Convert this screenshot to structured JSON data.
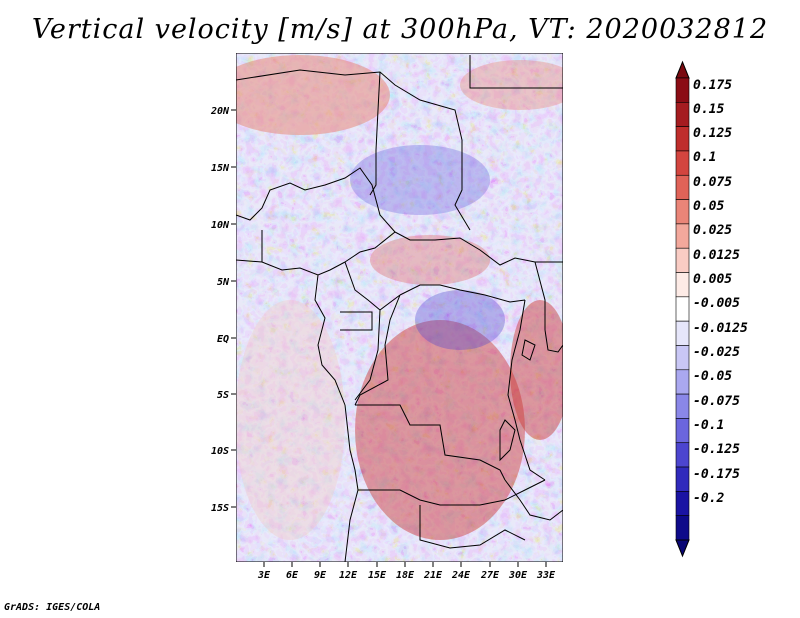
{
  "title": "Vertical velocity [m/s] at 300hPa, VT: 2020032812",
  "credit": "GrADS: IGES/COLA",
  "map": {
    "lat_labels": [
      "20N",
      "15N",
      "10N",
      "5N",
      "EQ",
      "5S",
      "10S",
      "15S"
    ],
    "lon_labels": [
      "3E",
      "6E",
      "9E",
      "12E",
      "15E",
      "18E",
      "21E",
      "24E",
      "27E",
      "30E",
      "33E"
    ]
  },
  "colorbar": {
    "levels": [
      "0.175",
      "0.15",
      "0.125",
      "0.1",
      "0.075",
      "0.05",
      "0.025",
      "0.0125",
      "0.005",
      "-0.005",
      "-0.0125",
      "-0.025",
      "-0.05",
      "-0.075",
      "-0.1",
      "-0.125",
      "-0.175",
      "-0.2"
    ],
    "colors": [
      "#8b0d15",
      "#a51c20",
      "#bf2e2c",
      "#d3453f",
      "#e06358",
      "#ea8578",
      "#f3a89c",
      "#f9ccc4",
      "#fdebe6",
      "#ffffff",
      "#e6e6fa",
      "#c9c7f5",
      "#aaa8f0",
      "#8a87e8",
      "#6b66de",
      "#4c45cf",
      "#302abc",
      "#1a13a3",
      "#0e0a8a"
    ],
    "top_arrow_color": "#7a0a10",
    "bottom_arrow_color": "#0a0775"
  }
}
